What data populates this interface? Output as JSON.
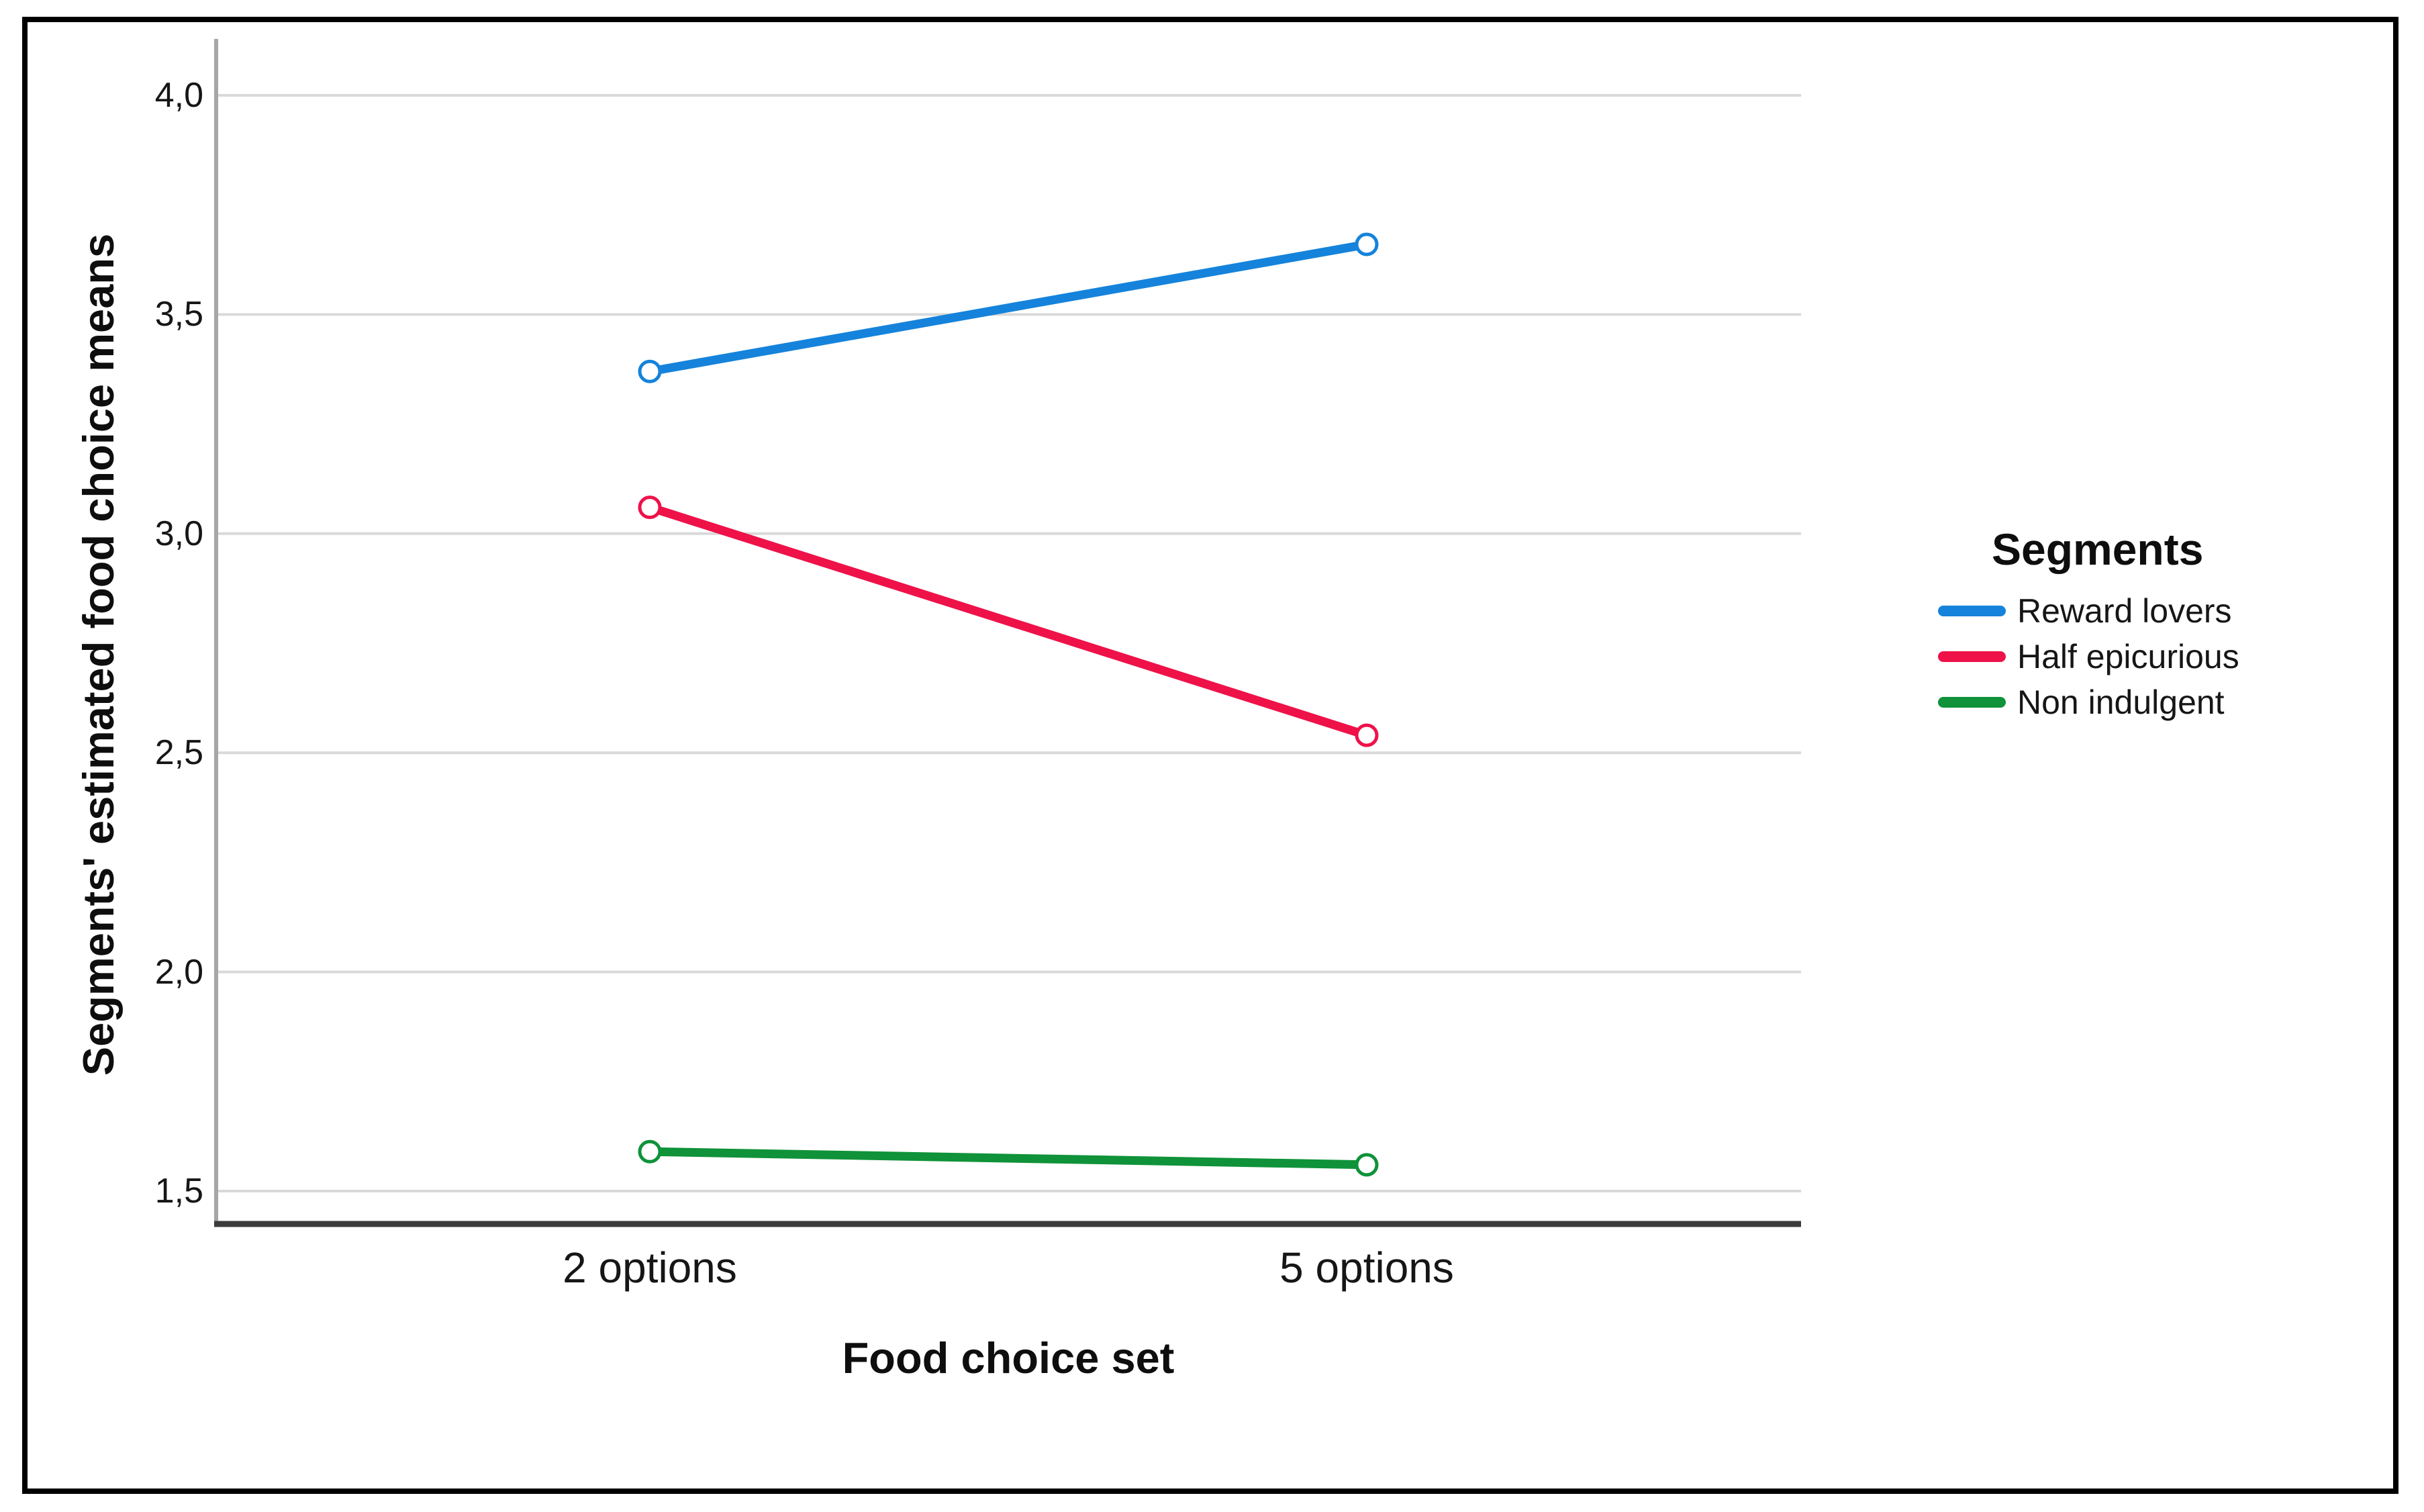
{
  "chart_data": {
    "type": "line",
    "title": "",
    "categories": [
      "2 options",
      "5 options"
    ],
    "series": [
      {
        "name": "Reward lovers",
        "color": "#1583DB",
        "values": [
          3.37,
          3.66
        ]
      },
      {
        "name": "Half epicurious",
        "color": "#EE1249",
        "values": [
          3.06,
          2.54
        ]
      },
      {
        "name": "Non indulgent",
        "color": "#0F9239",
        "values": [
          1.59,
          1.56
        ]
      }
    ],
    "xlabel": "Food choice set",
    "ylabel": "Segments' estimated food choice means",
    "y_ticks": [
      {
        "value": 4.0,
        "label": "4,0"
      },
      {
        "value": 3.5,
        "label": "3,5"
      },
      {
        "value": 3.0,
        "label": "3,0"
      },
      {
        "value": 2.5,
        "label": "2,5"
      },
      {
        "value": 2.0,
        "label": "2,0"
      },
      {
        "value": 1.5,
        "label": "1,5"
      }
    ],
    "ylim": [
      1.43,
      4.13
    ],
    "grid": "horizontal",
    "marker": "open-circle",
    "legend": {
      "title": "Segments",
      "position": "right"
    }
  },
  "style_colors": {
    "gridline": "#D9D9D9",
    "y_axis_line": "#A6A6A6",
    "x_axis_line": "#3C3C3C",
    "figure_border": "#000000"
  }
}
